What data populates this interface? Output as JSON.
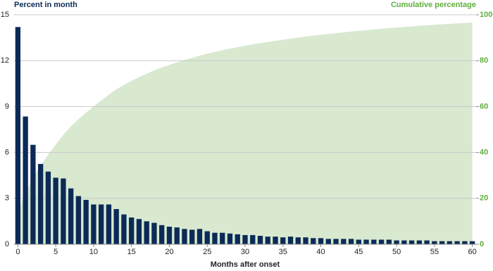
{
  "chart_data": {
    "type": "bar",
    "x_label": "Months after onset",
    "x": [
      0,
      1,
      2,
      3,
      4,
      5,
      6,
      7,
      8,
      9,
      10,
      11,
      12,
      13,
      14,
      15,
      16,
      17,
      18,
      19,
      20,
      21,
      22,
      23,
      24,
      25,
      26,
      27,
      28,
      29,
      30,
      31,
      32,
      33,
      34,
      35,
      36,
      37,
      38,
      39,
      40,
      41,
      42,
      43,
      44,
      45,
      46,
      47,
      48,
      49,
      50,
      51,
      52,
      53,
      54,
      55,
      56,
      57,
      58,
      59,
      60
    ],
    "xlim": [
      -0.5,
      60.5
    ],
    "xticks": [
      0,
      5,
      10,
      15,
      20,
      25,
      30,
      35,
      40,
      45,
      50,
      55,
      60
    ],
    "ylim": [
      0,
      15
    ],
    "yticks": [
      0,
      3,
      6,
      9,
      12,
      15
    ],
    "y2lim": [
      0,
      100
    ],
    "y2ticks": [
      0,
      20,
      40,
      60,
      80,
      100
    ],
    "grid": true,
    "series": [
      {
        "name": "Percent in month",
        "type": "bar",
        "color": "#0b2a57",
        "values": [
          14.2,
          8.35,
          6.5,
          5.25,
          4.75,
          4.35,
          4.3,
          3.65,
          3.15,
          2.9,
          2.6,
          2.6,
          2.6,
          2.3,
          1.95,
          1.75,
          1.65,
          1.5,
          1.4,
          1.25,
          1.15,
          1.1,
          1.0,
          0.95,
          1.0,
          0.85,
          0.75,
          0.75,
          0.7,
          0.65,
          0.6,
          0.6,
          0.55,
          0.5,
          0.5,
          0.45,
          0.5,
          0.45,
          0.45,
          0.4,
          0.4,
          0.35,
          0.35,
          0.35,
          0.35,
          0.3,
          0.3,
          0.3,
          0.3,
          0.3,
          0.25,
          0.25,
          0.25,
          0.25,
          0.25,
          0.2,
          0.2,
          0.2,
          0.2,
          0.2,
          0.2
        ]
      },
      {
        "name": "Cumulative percentage",
        "type": "area",
        "axis": "y2",
        "color": "#d8e9d0",
        "label_color": "#5fae3e",
        "values": [
          14.2,
          22.55,
          29.05,
          34.3,
          39.05,
          43.4,
          47.7,
          51.35,
          54.5,
          57.4,
          60.0,
          62.6,
          65.2,
          67.5,
          69.45,
          71.2,
          72.85,
          74.35,
          75.75,
          77.0,
          78.15,
          79.25,
          80.25,
          81.2,
          82.2,
          83.05,
          83.8,
          84.55,
          85.25,
          85.9,
          86.5,
          87.1,
          87.65,
          88.15,
          88.65,
          89.1,
          89.6,
          90.05,
          90.5,
          90.9,
          91.3,
          91.65,
          92.0,
          92.35,
          92.7,
          93.0,
          93.3,
          93.6,
          93.9,
          94.2,
          94.45,
          94.7,
          94.95,
          95.2,
          95.45,
          95.65,
          95.85,
          96.05,
          96.25,
          96.45,
          96.65
        ]
      }
    ]
  }
}
